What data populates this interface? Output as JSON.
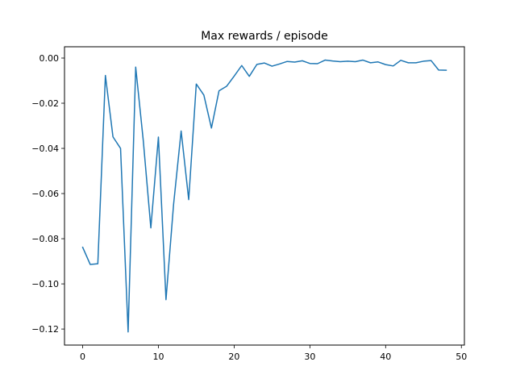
{
  "chart_data": {
    "type": "line",
    "title": "Max rewards / episode",
    "xlabel": "",
    "ylabel": "",
    "xlim": [
      -2.4,
      50.4
    ],
    "ylim": [
      -0.1271,
      0.005
    ],
    "x_ticks": [
      0,
      10,
      20,
      30,
      40,
      50
    ],
    "x_tick_labels": [
      "0",
      "10",
      "20",
      "30",
      "40",
      "50"
    ],
    "y_ticks": [
      0.0,
      -0.02,
      -0.04,
      -0.06,
      -0.08,
      -0.1,
      -0.12
    ],
    "y_tick_labels": [
      "0.00",
      "−0.02",
      "−0.04",
      "−0.06",
      "−0.08",
      "−0.10",
      "−0.12"
    ],
    "grid": false,
    "series": [
      {
        "color": "#1f77b4",
        "x": [
          0,
          1,
          2,
          3,
          4,
          5,
          6,
          7,
          8,
          9,
          10,
          11,
          12,
          13,
          14,
          15,
          16,
          17,
          18,
          19,
          20,
          21,
          22,
          23,
          24,
          25,
          26,
          27,
          28,
          29,
          30,
          31,
          32,
          33,
          34,
          35,
          36,
          37,
          38,
          39,
          40,
          41,
          42,
          43,
          44,
          45,
          46,
          47,
          48
        ],
        "values": [
          -0.0838,
          -0.0914,
          -0.0911,
          -0.0077,
          -0.0349,
          -0.04,
          -0.1213,
          -0.004,
          -0.0365,
          -0.0752,
          -0.035,
          -0.107,
          -0.0649,
          -0.0323,
          -0.0627,
          -0.0115,
          -0.0164,
          -0.031,
          -0.0145,
          -0.0125,
          -0.008,
          -0.0033,
          -0.0081,
          -0.0028,
          -0.0022,
          -0.0036,
          -0.0026,
          -0.0015,
          -0.0018,
          -0.0012,
          -0.0024,
          -0.0025,
          -0.0009,
          -0.0013,
          -0.0016,
          -0.0014,
          -0.0016,
          -0.0009,
          -0.0021,
          -0.0017,
          -0.0029,
          -0.0035,
          -0.001,
          -0.0021,
          -0.0021,
          -0.0014,
          -0.0011,
          -0.0053,
          -0.0054
        ]
      }
    ]
  }
}
